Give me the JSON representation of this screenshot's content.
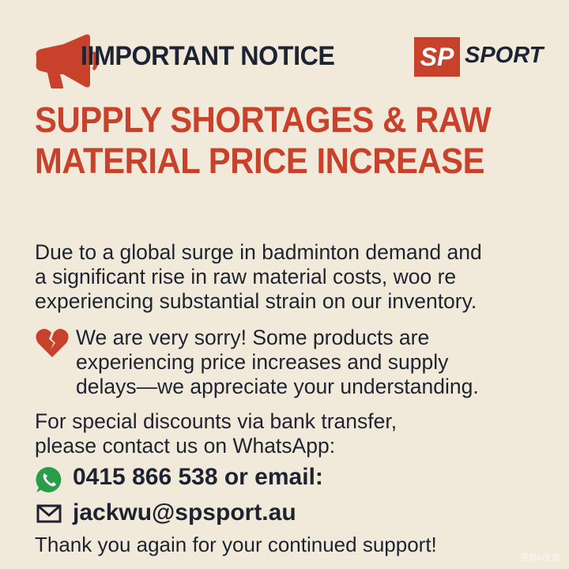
{
  "header": {
    "title": "IIMPORTANT NOTICE",
    "logo_mark": "SP",
    "logo_text": "SPORT",
    "icon": "megaphone-icon"
  },
  "headline": [
    "SUPPLY SHORTAGES & RAW",
    "MATERIAL PRICE INCREASE"
  ],
  "intro": [
    "Due to a global surge in badminton demand and",
    "a significant rise in raw material costs, woo re",
    "experiencing substantial strain on our inventory."
  ],
  "apology": {
    "icon": "broken-heart-icon",
    "lines": [
      "We are very sorry! Some products are",
      "experiencing price increases and supply",
      "delays—we appreciate your understanding."
    ]
  },
  "contact": {
    "lines": [
      "For special discounts via bank transfer,",
      "please contact us on WhatsApp:"
    ],
    "phone": "0415 866 538 or email:",
    "phone_icon": "whatsapp-icon",
    "email": "jackwu@spsport.au",
    "email_icon": "envelope-icon"
  },
  "thanks": "Thank you again for your continued support!",
  "watermark": "豆包AI生成",
  "colors": {
    "accent": "#c8412a",
    "background": "#f1eadb",
    "text": "#1f2330",
    "whatsapp": "#2a9d4a"
  }
}
